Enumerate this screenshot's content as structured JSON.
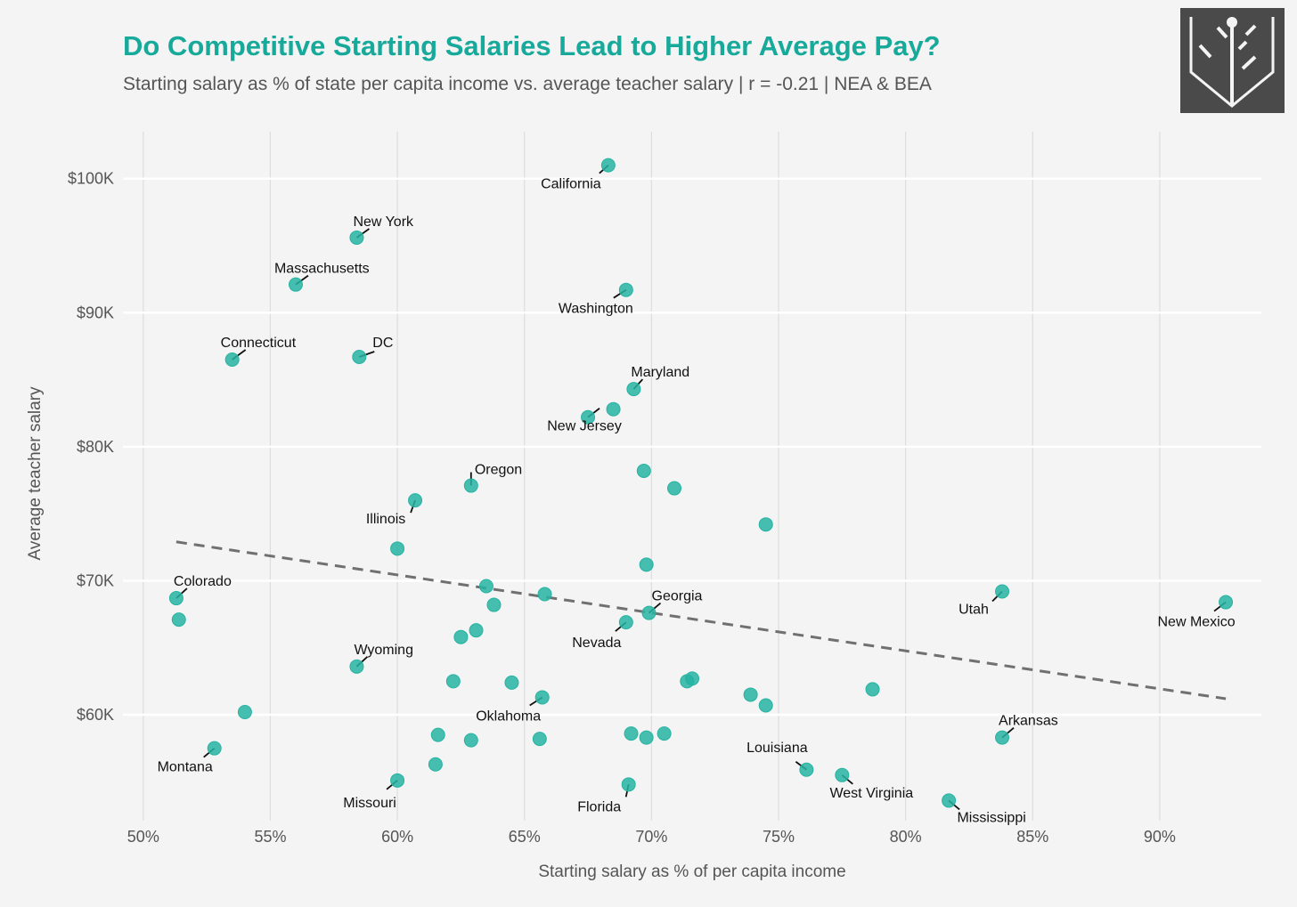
{
  "header": {
    "title": "Do Competitive Starting Salaries Lead to Higher Average Pay?",
    "subtitle": "Starting salary as % of state per capita income vs. average teacher salary | r = -0.21 | NEA & BEA"
  },
  "logo": {
    "icon": "tree-book-logo-icon"
  },
  "colors": {
    "title": "#17a99a",
    "point": "#26b3a2",
    "trend": "#707070",
    "grid": "#ffffff",
    "grid_x": "#dddddd",
    "background": "#f4f4f4"
  },
  "chart_data": {
    "type": "scatter",
    "xlabel": "Starting salary as % of per capita income",
    "ylabel": "Average teacher salary",
    "xlim": [
      49.2,
      94.0
    ],
    "ylim": [
      52100,
      103500
    ],
    "x_ticks": [
      50,
      55,
      60,
      65,
      70,
      75,
      80,
      85,
      90
    ],
    "x_tick_labels": [
      "50%",
      "55%",
      "60%",
      "65%",
      "70%",
      "75%",
      "80%",
      "85%",
      "90%"
    ],
    "y_ticks": [
      60000,
      70000,
      80000,
      90000,
      100000
    ],
    "y_tick_labels": [
      "$60K",
      "$70K",
      "$80K",
      "$90K",
      "$100K"
    ],
    "grid": true,
    "trendline": {
      "style": "dashed",
      "x": [
        51.3,
        92.6
      ],
      "y": [
        72900,
        61200
      ]
    },
    "points": [
      {
        "x": 68.3,
        "y": 101000,
        "label": "California"
      },
      {
        "x": 58.4,
        "y": 95600,
        "label": "New York"
      },
      {
        "x": 56.0,
        "y": 92100,
        "label": "Massachusetts"
      },
      {
        "x": 69.0,
        "y": 91700,
        "label": "Washington"
      },
      {
        "x": 53.5,
        "y": 86500,
        "label": "Connecticut"
      },
      {
        "x": 58.5,
        "y": 86700,
        "label": "DC"
      },
      {
        "x": 69.3,
        "y": 84300,
        "label": "Maryland"
      },
      {
        "x": 68.5,
        "y": 82800
      },
      {
        "x": 67.5,
        "y": 82200,
        "label": "New Jersey"
      },
      {
        "x": 62.9,
        "y": 77100,
        "label": "Oregon"
      },
      {
        "x": 69.7,
        "y": 78200
      },
      {
        "x": 70.9,
        "y": 76900
      },
      {
        "x": 60.7,
        "y": 76000,
        "label": "Illinois"
      },
      {
        "x": 74.5,
        "y": 74200
      },
      {
        "x": 60.0,
        "y": 72400
      },
      {
        "x": 69.8,
        "y": 71200
      },
      {
        "x": 51.3,
        "y": 68700,
        "label": "Colorado"
      },
      {
        "x": 51.4,
        "y": 67100
      },
      {
        "x": 63.5,
        "y": 69600
      },
      {
        "x": 65.8,
        "y": 69000
      },
      {
        "x": 63.8,
        "y": 68200
      },
      {
        "x": 69.9,
        "y": 67600,
        "label": "Georgia"
      },
      {
        "x": 69.0,
        "y": 66900,
        "label": "Nevada"
      },
      {
        "x": 63.1,
        "y": 66300
      },
      {
        "x": 62.5,
        "y": 65800
      },
      {
        "x": 83.8,
        "y": 69200,
        "label": "Utah"
      },
      {
        "x": 92.6,
        "y": 68400,
        "label": "New Mexico"
      },
      {
        "x": 58.4,
        "y": 63600,
        "label": "Wyoming"
      },
      {
        "x": 62.2,
        "y": 62500
      },
      {
        "x": 64.5,
        "y": 62400
      },
      {
        "x": 71.4,
        "y": 62500
      },
      {
        "x": 71.6,
        "y": 62700
      },
      {
        "x": 78.7,
        "y": 61900
      },
      {
        "x": 73.9,
        "y": 61500
      },
      {
        "x": 74.5,
        "y": 60700
      },
      {
        "x": 65.7,
        "y": 61300,
        "label": "Oklahoma"
      },
      {
        "x": 54.0,
        "y": 60200
      },
      {
        "x": 61.6,
        "y": 58500
      },
      {
        "x": 62.9,
        "y": 58100
      },
      {
        "x": 65.6,
        "y": 58200
      },
      {
        "x": 69.2,
        "y": 58600
      },
      {
        "x": 69.8,
        "y": 58300
      },
      {
        "x": 70.5,
        "y": 58600
      },
      {
        "x": 83.8,
        "y": 58300,
        "label": "Arkansas"
      },
      {
        "x": 52.8,
        "y": 57500,
        "label": "Montana"
      },
      {
        "x": 61.5,
        "y": 56300
      },
      {
        "x": 76.1,
        "y": 55900,
        "label": "Louisiana"
      },
      {
        "x": 77.5,
        "y": 55500,
        "label": "West Virginia"
      },
      {
        "x": 60.0,
        "y": 55100,
        "label": "Missouri"
      },
      {
        "x": 69.1,
        "y": 54800,
        "label": "Florida"
      },
      {
        "x": 81.7,
        "y": 53600,
        "label": "Mississippi"
      }
    ]
  }
}
